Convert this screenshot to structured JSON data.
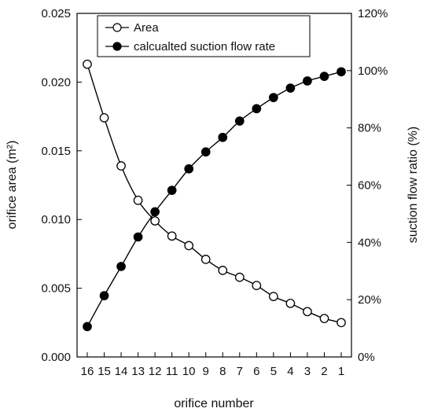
{
  "chart_data": {
    "type": "line",
    "xlabel": "orifice number",
    "ylabel_left": "orifice area (m²)",
    "ylabel_right": "suction flow ratio (%)",
    "categories": [
      "16",
      "15",
      "14",
      "13",
      "12",
      "11",
      "10",
      "9",
      "8",
      "7",
      "6",
      "5",
      "4",
      "3",
      "2",
      "1"
    ],
    "y_left_range": [
      0,
      0.025
    ],
    "y_right_range": [
      0,
      120
    ],
    "y_left_ticks": [
      "0.000",
      "0.005",
      "0.010",
      "0.015",
      "0.020",
      "0.025"
    ],
    "y_right_ticks": [
      "0%",
      "20%",
      "40%",
      "60%",
      "80%",
      "100%",
      "120%"
    ],
    "grid": false,
    "legend_position": "top-center",
    "series": [
      {
        "name": "Area",
        "axis": "left",
        "marker": "open-circle",
        "values": [
          0.0213,
          0.0174,
          0.0139,
          0.0114,
          0.0099,
          0.0088,
          0.0081,
          0.0071,
          0.0063,
          0.0058,
          0.0052,
          0.0044,
          0.0039,
          0.0033,
          0.0028,
          0.0025
        ]
      },
      {
        "name": "calcualted suction flow rate",
        "axis": "right",
        "marker": "filled-circle",
        "values": [
          10.6,
          21.4,
          31.6,
          41.9,
          50.7,
          58.2,
          65.7,
          71.6,
          76.7,
          82.4,
          86.7,
          90.6,
          93.9,
          96.4,
          98.0,
          99.6
        ]
      }
    ]
  }
}
